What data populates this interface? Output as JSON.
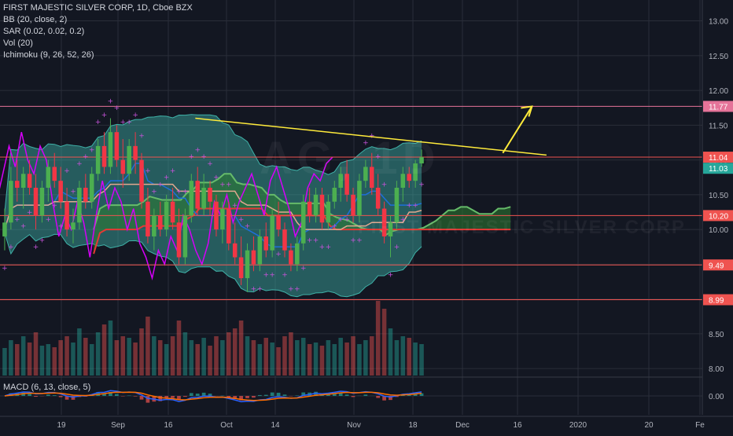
{
  "legend": {
    "symbol": "FIRST MAJESTIC SILVER CORP, 1D, Cboe BZX",
    "indicators": [
      "BB (20, close, 2)",
      "SAR (0.02, 0.02, 0.2)",
      "Vol (20)",
      "Ichimoku (9, 26, 52, 26)"
    ]
  },
  "macd_label": "MACD (6, 13, close, 5)",
  "watermark": "AG, 1D",
  "watermark2": "FIRST MAJESTIC SILVER CORP",
  "colors": {
    "up": "#26a69a",
    "down": "#ef5350",
    "bb_fill": "#3fb2a8",
    "kumo_green": "#2e7d32",
    "kumo_red": "#c62828",
    "trend": "#ffeb3b"
  },
  "chart_data": {
    "type": "candlestick",
    "y_ticks": [
      "13.00",
      "12.50",
      "12.00",
      "11.50",
      "11.00",
      "10.50",
      "10.00",
      "9.50",
      "9.00",
      "8.50",
      "8.00"
    ],
    "x_ticks": [
      "19",
      "Sep",
      "16",
      "Oct",
      "14",
      "Nov",
      "18",
      "Dec",
      "16",
      "2020",
      "20",
      "Fe"
    ],
    "price_tags": [
      {
        "label": "11.77",
        "value": 11.77,
        "color": "#e57399"
      },
      {
        "label": "11.04",
        "value": 11.04,
        "color": "#ef5350"
      },
      {
        "label": "11.03",
        "value": 10.88,
        "color": "#26a69a"
      },
      {
        "label": "10.20",
        "value": 10.2,
        "color": "#ef5350"
      },
      {
        "label": "9.49",
        "value": 9.49,
        "color": "#ef5350"
      },
      {
        "label": "8.99",
        "value": 8.99,
        "color": "#ef5350"
      }
    ],
    "horizontal_lines": [
      11.77,
      11.04,
      10.2,
      9.49,
      8.99
    ],
    "macd_tick": "0.00",
    "ohlc": [
      [
        9.9,
        10.3,
        9.7,
        10.1
      ],
      [
        10.1,
        10.9,
        10.0,
        10.7
      ],
      [
        10.7,
        11.0,
        10.4,
        10.6
      ],
      [
        10.6,
        10.9,
        10.3,
        10.8
      ],
      [
        10.8,
        11.0,
        10.5,
        10.6
      ],
      [
        10.6,
        10.8,
        10.0,
        10.2
      ],
      [
        10.2,
        10.7,
        10.1,
        10.6
      ],
      [
        10.6,
        11.0,
        10.4,
        10.9
      ],
      [
        10.9,
        11.1,
        10.6,
        10.7
      ],
      [
        10.7,
        10.9,
        10.3,
        10.4
      ],
      [
        10.4,
        10.6,
        9.9,
        10.0
      ],
      [
        10.0,
        10.3,
        9.8,
        10.1
      ],
      [
        10.1,
        10.7,
        10.0,
        10.6
      ],
      [
        10.6,
        10.8,
        10.3,
        10.4
      ],
      [
        10.4,
        10.9,
        10.3,
        10.8
      ],
      [
        10.8,
        11.3,
        10.7,
        11.2
      ],
      [
        11.2,
        11.4,
        10.8,
        10.9
      ],
      [
        10.9,
        11.6,
        10.8,
        11.4
      ],
      [
        11.4,
        11.5,
        10.9,
        11.0
      ],
      [
        11.0,
        11.3,
        10.6,
        10.8
      ],
      [
        10.8,
        11.3,
        10.7,
        11.2
      ],
      [
        11.2,
        11.4,
        10.8,
        11.0
      ],
      [
        11.0,
        11.1,
        10.3,
        10.4
      ],
      [
        10.4,
        10.6,
        9.8,
        9.9
      ],
      [
        9.9,
        10.3,
        9.7,
        10.2
      ],
      [
        10.2,
        10.4,
        9.9,
        10.0
      ],
      [
        10.0,
        10.5,
        9.9,
        10.4
      ],
      [
        10.4,
        10.6,
        10.0,
        10.1
      ],
      [
        10.1,
        10.3,
        9.5,
        9.6
      ],
      [
        9.6,
        10.3,
        9.5,
        10.2
      ],
      [
        10.2,
        10.8,
        10.1,
        10.7
      ],
      [
        10.7,
        10.9,
        10.2,
        10.3
      ],
      [
        10.3,
        10.8,
        10.2,
        10.6
      ],
      [
        10.6,
        10.7,
        10.2,
        10.4
      ],
      [
        10.4,
        10.5,
        9.9,
        10.0
      ],
      [
        10.0,
        10.4,
        9.8,
        10.3
      ],
      [
        10.3,
        10.4,
        9.7,
        9.8
      ],
      [
        9.8,
        10.1,
        9.5,
        9.6
      ],
      [
        9.6,
        9.9,
        9.2,
        9.3
      ],
      [
        9.3,
        9.8,
        9.1,
        9.7
      ],
      [
        9.7,
        9.9,
        9.4,
        9.5
      ],
      [
        9.5,
        10.0,
        9.4,
        9.9
      ],
      [
        9.9,
        10.1,
        9.6,
        9.7
      ],
      [
        9.7,
        10.3,
        9.6,
        10.2
      ],
      [
        10.2,
        10.4,
        9.9,
        10.0
      ],
      [
        10.0,
        10.1,
        9.6,
        9.7
      ],
      [
        9.7,
        9.8,
        9.4,
        9.5
      ],
      [
        9.5,
        9.9,
        9.4,
        9.8
      ],
      [
        9.8,
        10.5,
        9.7,
        10.4
      ],
      [
        10.4,
        10.6,
        10.1,
        10.2
      ],
      [
        10.2,
        10.6,
        10.1,
        10.5
      ],
      [
        10.5,
        10.6,
        10.0,
        10.1
      ],
      [
        10.1,
        10.5,
        10.0,
        10.4
      ],
      [
        10.4,
        10.7,
        10.3,
        10.6
      ],
      [
        10.6,
        10.9,
        10.4,
        10.8
      ],
      [
        10.8,
        11.0,
        10.4,
        10.5
      ],
      [
        10.5,
        10.6,
        10.1,
        10.2
      ],
      [
        10.2,
        10.8,
        10.1,
        10.7
      ],
      [
        10.7,
        11.0,
        10.6,
        10.9
      ],
      [
        10.9,
        11.1,
        10.5,
        10.6
      ],
      [
        10.6,
        10.8,
        10.2,
        10.3
      ],
      [
        10.3,
        10.4,
        9.8,
        9.9
      ],
      [
        9.9,
        10.2,
        9.6,
        10.1
      ],
      [
        10.1,
        10.7,
        10.0,
        10.6
      ],
      [
        10.6,
        10.9,
        10.4,
        10.8
      ],
      [
        10.8,
        10.9,
        10.6,
        10.7
      ],
      [
        10.7,
        11.0,
        10.6,
        10.95
      ],
      [
        10.95,
        11.15,
        10.9,
        11.04
      ]
    ],
    "volume": [
      0.35,
      0.45,
      0.4,
      0.5,
      0.42,
      0.55,
      0.38,
      0.4,
      0.36,
      0.45,
      0.5,
      0.42,
      0.6,
      0.48,
      0.4,
      0.55,
      0.65,
      0.7,
      0.45,
      0.5,
      0.48,
      0.42,
      0.6,
      0.75,
      0.5,
      0.45,
      0.4,
      0.5,
      0.7,
      0.55,
      0.45,
      0.4,
      0.48,
      0.38,
      0.5,
      0.45,
      0.55,
      0.6,
      0.7,
      0.5,
      0.45,
      0.4,
      0.48,
      0.42,
      0.36,
      0.5,
      0.55,
      0.45,
      0.48,
      0.4,
      0.42,
      0.38,
      0.45,
      0.4,
      0.48,
      0.42,
      0.5,
      0.4,
      0.45,
      0.5,
      0.95,
      0.85,
      0.6,
      0.45,
      0.5,
      0.48,
      0.42,
      0.4
    ],
    "trendline": [
      [
        9.1,
        11.6
      ],
      [
        26.0,
        11.07
      ]
    ],
    "target_arrow": [
      [
        23.9,
        11.1
      ],
      [
        25.3,
        11.77
      ]
    ],
    "x_range": [
      -0.3,
      33.5
    ],
    "y_range": [
      7.9,
      13.3
    ]
  }
}
